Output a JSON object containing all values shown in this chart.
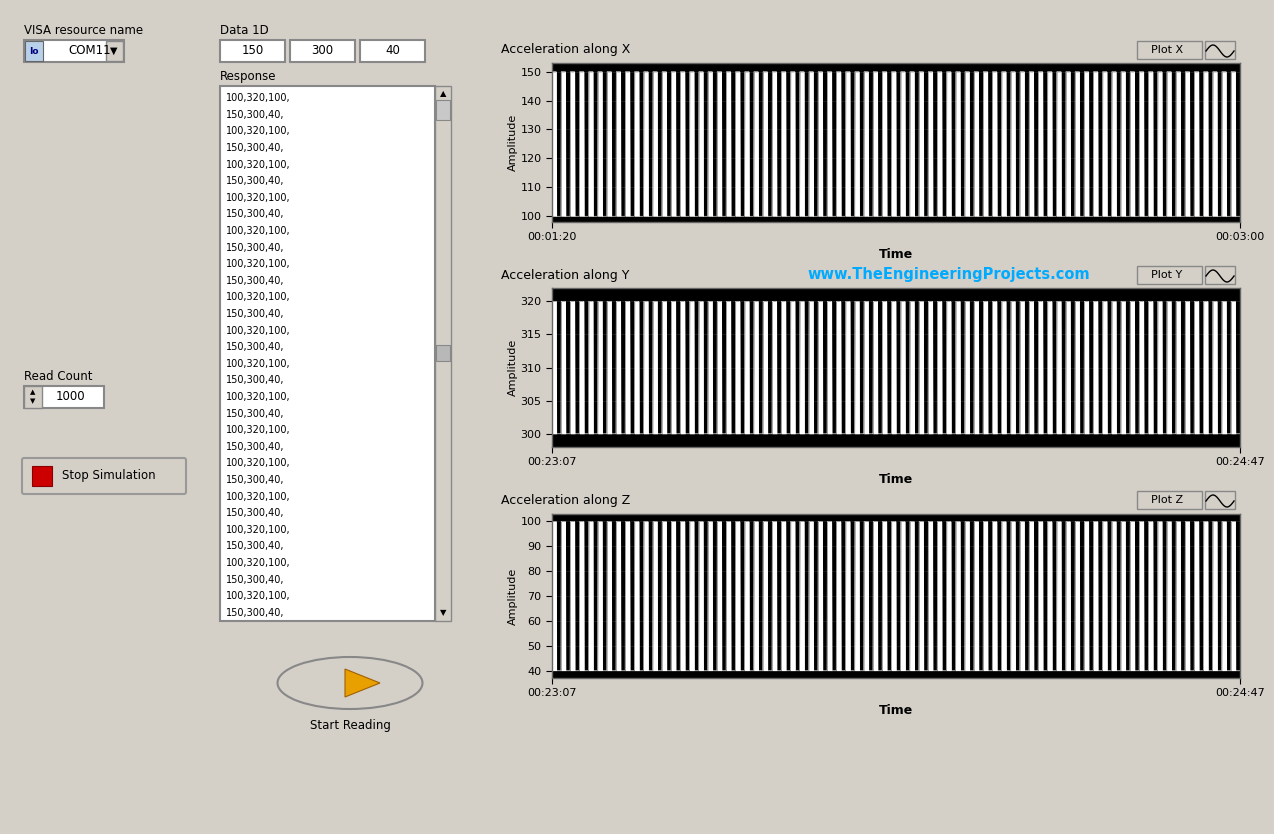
{
  "bg_color": "#d4d0c8",
  "plot_bg": "#000000",
  "watermark": "www.TheEngineeringProjects.com",
  "watermark_color": "#00aaff",
  "visa_label": "VISA resource name",
  "visa_value": "COM11",
  "data1d_label": "Data 1D",
  "data1d_values": [
    "150",
    "300",
    "40"
  ],
  "response_label": "Response",
  "response_lines": [
    "100,320,100,",
    "150,300,40,",
    "100,320,100,",
    "150,300,40,",
    "100,320,100,",
    "150,300,40,",
    "100,320,100,",
    "150,300,40,",
    "100,320,100,",
    "150,300,40,",
    "100,320,100,",
    "150,300,40,",
    "100,320,100,",
    "150,300,40,",
    "100,320,100,",
    "150,300,40,",
    "100,320,100,",
    "150,300,40,",
    "100,320,100,",
    "150,300,40,",
    "100,320,100,",
    "150,300,40,",
    "100,320,100,",
    "150,300,40,",
    "100,320,100,",
    "150,300,40,",
    "100,320,100,",
    "150,300,40,",
    "100,320,100,",
    "150,300,40,",
    "100,320,100,",
    "150,300,40,"
  ],
  "read_count_label": "Read Count",
  "read_count_value": "1000",
  "stop_btn_label": "Stop Simulation",
  "start_btn_label": "Start Reading",
  "plots": [
    {
      "title": "Acceleration along X",
      "ylabel": "Amplitude",
      "xlabel": "Time",
      "yticks": [
        100,
        110,
        120,
        130,
        140,
        150
      ],
      "ylim": [
        98,
        153
      ],
      "xstart": "00:01:20",
      "xend": "00:03:00",
      "high": 150,
      "low": 100,
      "btn": "Plot X"
    },
    {
      "title": "Acceleration along Y",
      "ylabel": "Amplitude",
      "xlabel": "Time",
      "yticks": [
        300,
        305,
        310,
        315,
        320
      ],
      "ylim": [
        298,
        322
      ],
      "xstart": "00:23:07",
      "xend": "00:24:47",
      "high": 320,
      "low": 300,
      "btn": "Plot Y"
    },
    {
      "title": "Acceleration along Z",
      "ylabel": "Amplitude",
      "xlabel": "Time",
      "yticks": [
        40,
        50,
        60,
        70,
        80,
        90,
        100
      ],
      "ylim": [
        37,
        103
      ],
      "xstart": "00:23:07",
      "xend": "00:24:47",
      "high": 100,
      "low": 40,
      "btn": "Plot Z"
    }
  ]
}
